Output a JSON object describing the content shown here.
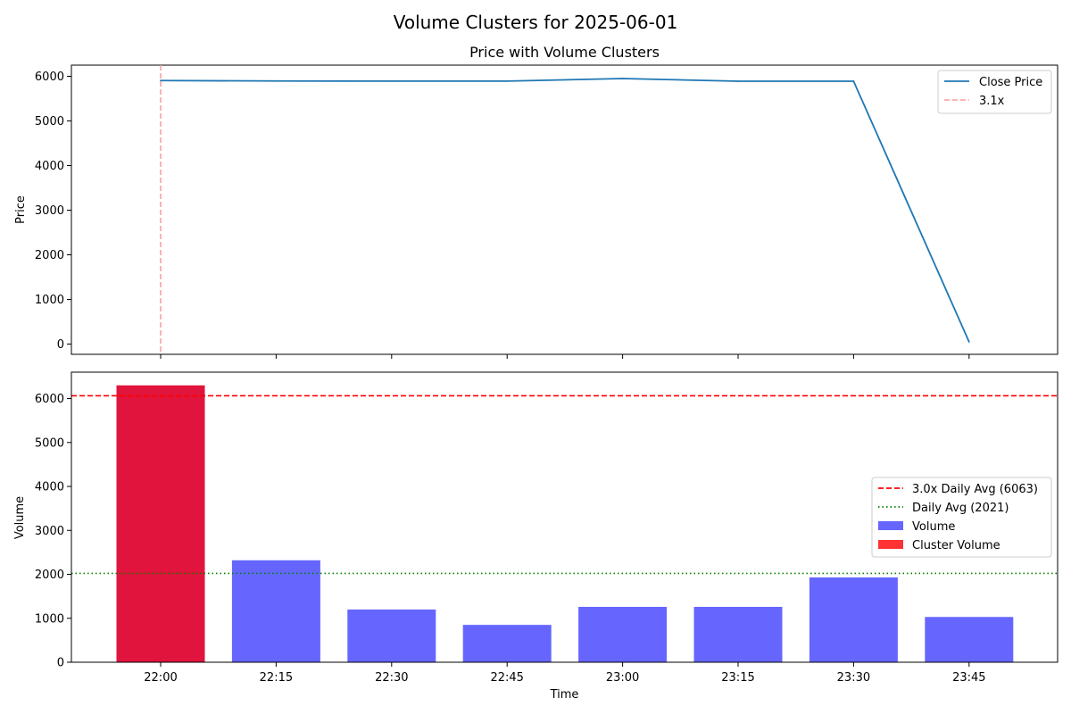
{
  "figure_title": "Volume Clusters for 2025-06-01",
  "chart_data": [
    {
      "type": "line",
      "title": "Price with Volume Clusters",
      "xlabel": "",
      "ylabel": "Price",
      "ylim": [
        -230,
        6250
      ],
      "yticks": [
        0,
        1000,
        2000,
        3000,
        4000,
        5000,
        6000
      ],
      "x": [
        "22:00",
        "22:15",
        "22:30",
        "22:45",
        "23:00",
        "23:15",
        "23:30",
        "23:45"
      ],
      "series": [
        {
          "name": "Close Price",
          "values": [
            5905,
            5895,
            5893,
            5893,
            5950,
            5890,
            5890,
            50
          ],
          "color": "#1f77b4"
        }
      ],
      "markers": [
        {
          "label": "3.1x",
          "x": "22:00",
          "color": "#ff9999",
          "style": "dashed"
        }
      ],
      "legend": "top-right"
    },
    {
      "type": "bar",
      "title": "",
      "xlabel": "Time",
      "ylabel": "Volume",
      "ylim": [
        0,
        6600
      ],
      "yticks": [
        0,
        1000,
        2000,
        3000,
        4000,
        5000,
        6000
      ],
      "categories": [
        "22:00",
        "22:15",
        "22:30",
        "22:45",
        "23:00",
        "23:15",
        "23:30",
        "23:45"
      ],
      "series": [
        {
          "name": "Volume",
          "values": [
            6300,
            2320,
            1200,
            850,
            1260,
            1260,
            1930,
            1030
          ],
          "color": "#6666ff"
        },
        {
          "name": "Cluster Volume",
          "values": [
            6300,
            null,
            null,
            null,
            null,
            null,
            null,
            null
          ],
          "color": "#ff3333"
        }
      ],
      "overlap_color": "#e0143c",
      "reference_lines": [
        {
          "label": "3.0x Daily Avg (6063)",
          "value": 6063,
          "color": "#ff0000",
          "style": "dashed"
        },
        {
          "label": "Daily Avg (2021)",
          "value": 2021,
          "color": "#008000",
          "style": "dotted"
        }
      ],
      "legend": "center-right"
    }
  ]
}
